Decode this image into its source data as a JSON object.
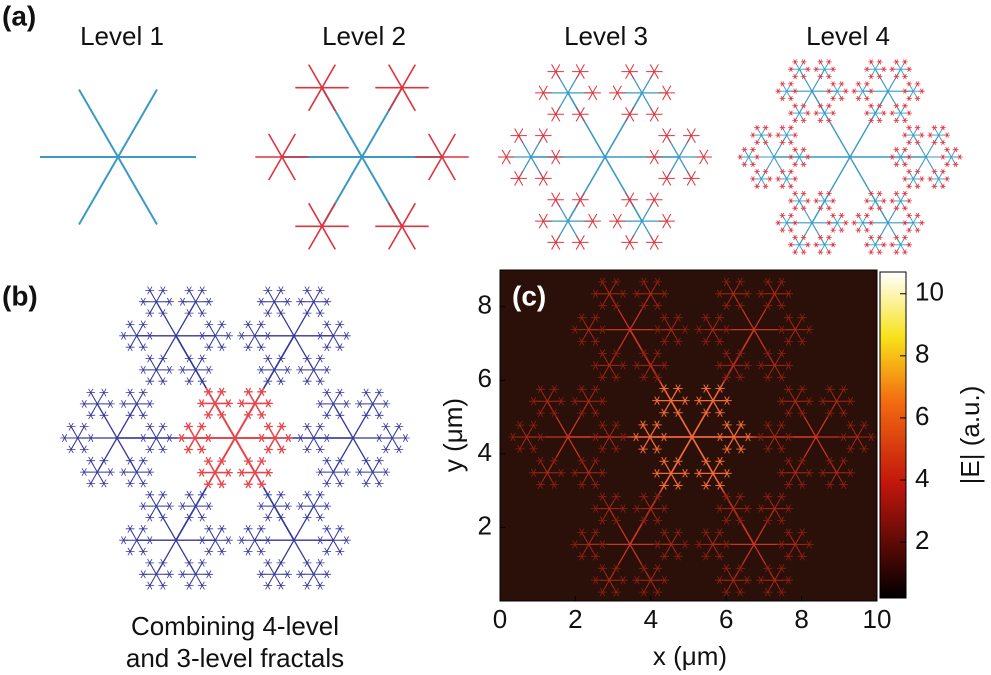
{
  "panel_a": {
    "label": "(a)",
    "levels": [
      "Level  1",
      "Level  2",
      "Level  3",
      "Level  4"
    ]
  },
  "panel_b": {
    "label": "(b)",
    "caption": [
      "Combining 4-level",
      "and 3-level fractals"
    ]
  },
  "chart_data": {
    "type": "heatmap",
    "label": "(c)",
    "xlabel": "x (μm)",
    "ylabel": "y (μm)",
    "xlim": [
      0,
      10
    ],
    "ylim": [
      0,
      9
    ],
    "xticks": [
      0,
      2,
      4,
      6,
      8,
      10
    ],
    "yticks": [
      2,
      4,
      6,
      8
    ],
    "colorbar": {
      "label": "|E| (a.u.)",
      "lim": [
        0.2,
        10.7
      ],
      "ticks": [
        2,
        4,
        6,
        8,
        10
      ]
    }
  }
}
